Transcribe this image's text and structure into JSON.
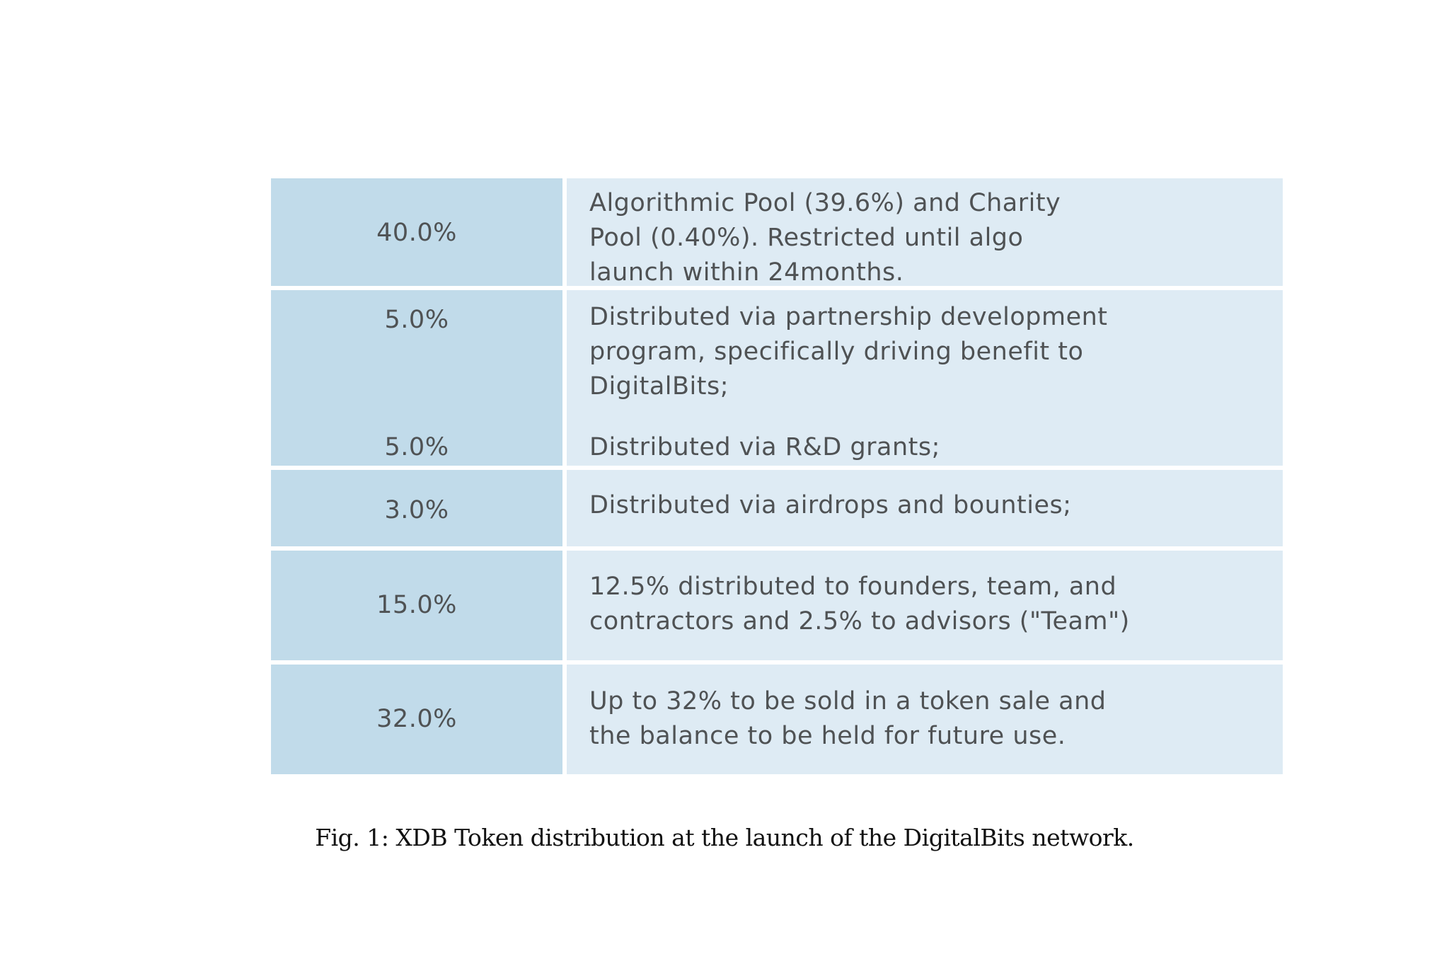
{
  "table": {
    "rows": [
      {
        "items": [
          {
            "percent": "40.0%",
            "description": "Algorithmic Pool (39.6%) and Charity\nPool (0.40%).  Restricted until algo\nlaunch within 24months."
          }
        ]
      },
      {
        "items": [
          {
            "percent": "5.0%",
            "description": "Distributed via partnership development\nprogram,  specifically driving benefit to\nDigitalBits;"
          },
          {
            "percent": "5.0%",
            "description": "Distributed via R&D grants;"
          }
        ]
      },
      {
        "items": [
          {
            "percent": "3.0%",
            "description": "Distributed via airdrops and bounties;"
          }
        ]
      },
      {
        "items": [
          {
            "percent": "15.0%",
            "description": "12.5% distributed to founders, team, and\ncontractors and 2.5% to advisors (\"Team\")"
          }
        ]
      },
      {
        "items": [
          {
            "percent": "32.0%",
            "description": "Up to 32% to be sold in a token sale and\nthe balance to be held for future use."
          }
        ]
      }
    ]
  },
  "caption": "Fig. 1: XDB Token distribution at the launch of the DigitalBits network."
}
